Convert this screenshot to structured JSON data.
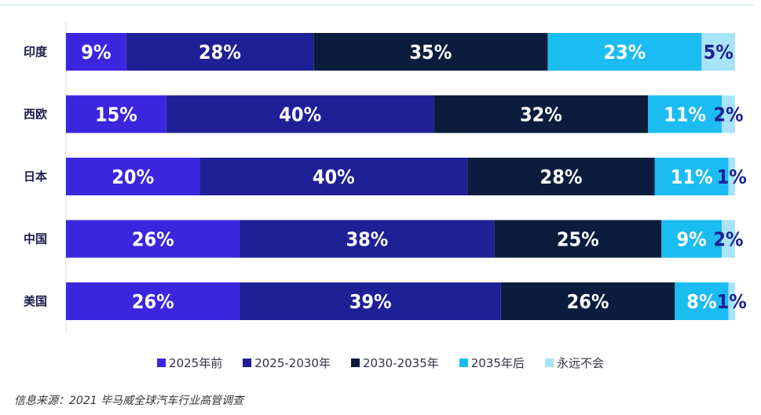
{
  "chart_data": {
    "type": "bar",
    "orientation": "horizontal",
    "stacked": true,
    "normalized": true,
    "categories": [
      "印度",
      "西欧",
      "日本",
      "中国",
      "美国"
    ],
    "series": [
      {
        "name": "2025年前",
        "color": "#3b26e0",
        "values": [
          9,
          15,
          20,
          26,
          26
        ]
      },
      {
        "name": "2025-2030年",
        "color": "#1f1f96",
        "values": [
          28,
          40,
          40,
          38,
          39
        ]
      },
      {
        "name": "2030-2035年",
        "color": "#0b1c3d",
        "values": [
          35,
          32,
          28,
          25,
          26
        ]
      },
      {
        "name": "2035年后",
        "color": "#1bbcf2",
        "values": [
          23,
          11,
          11,
          9,
          8
        ]
      },
      {
        "name": "永远不会",
        "color": "#a9e3f8",
        "values": [
          5,
          2,
          1,
          2,
          1
        ]
      }
    ],
    "value_suffix": "%",
    "legend_position": "bottom",
    "grid": false,
    "xlim": [
      0,
      100
    ]
  },
  "source_note": "信息来源：2021 毕马威全球汽车行业高管调查"
}
